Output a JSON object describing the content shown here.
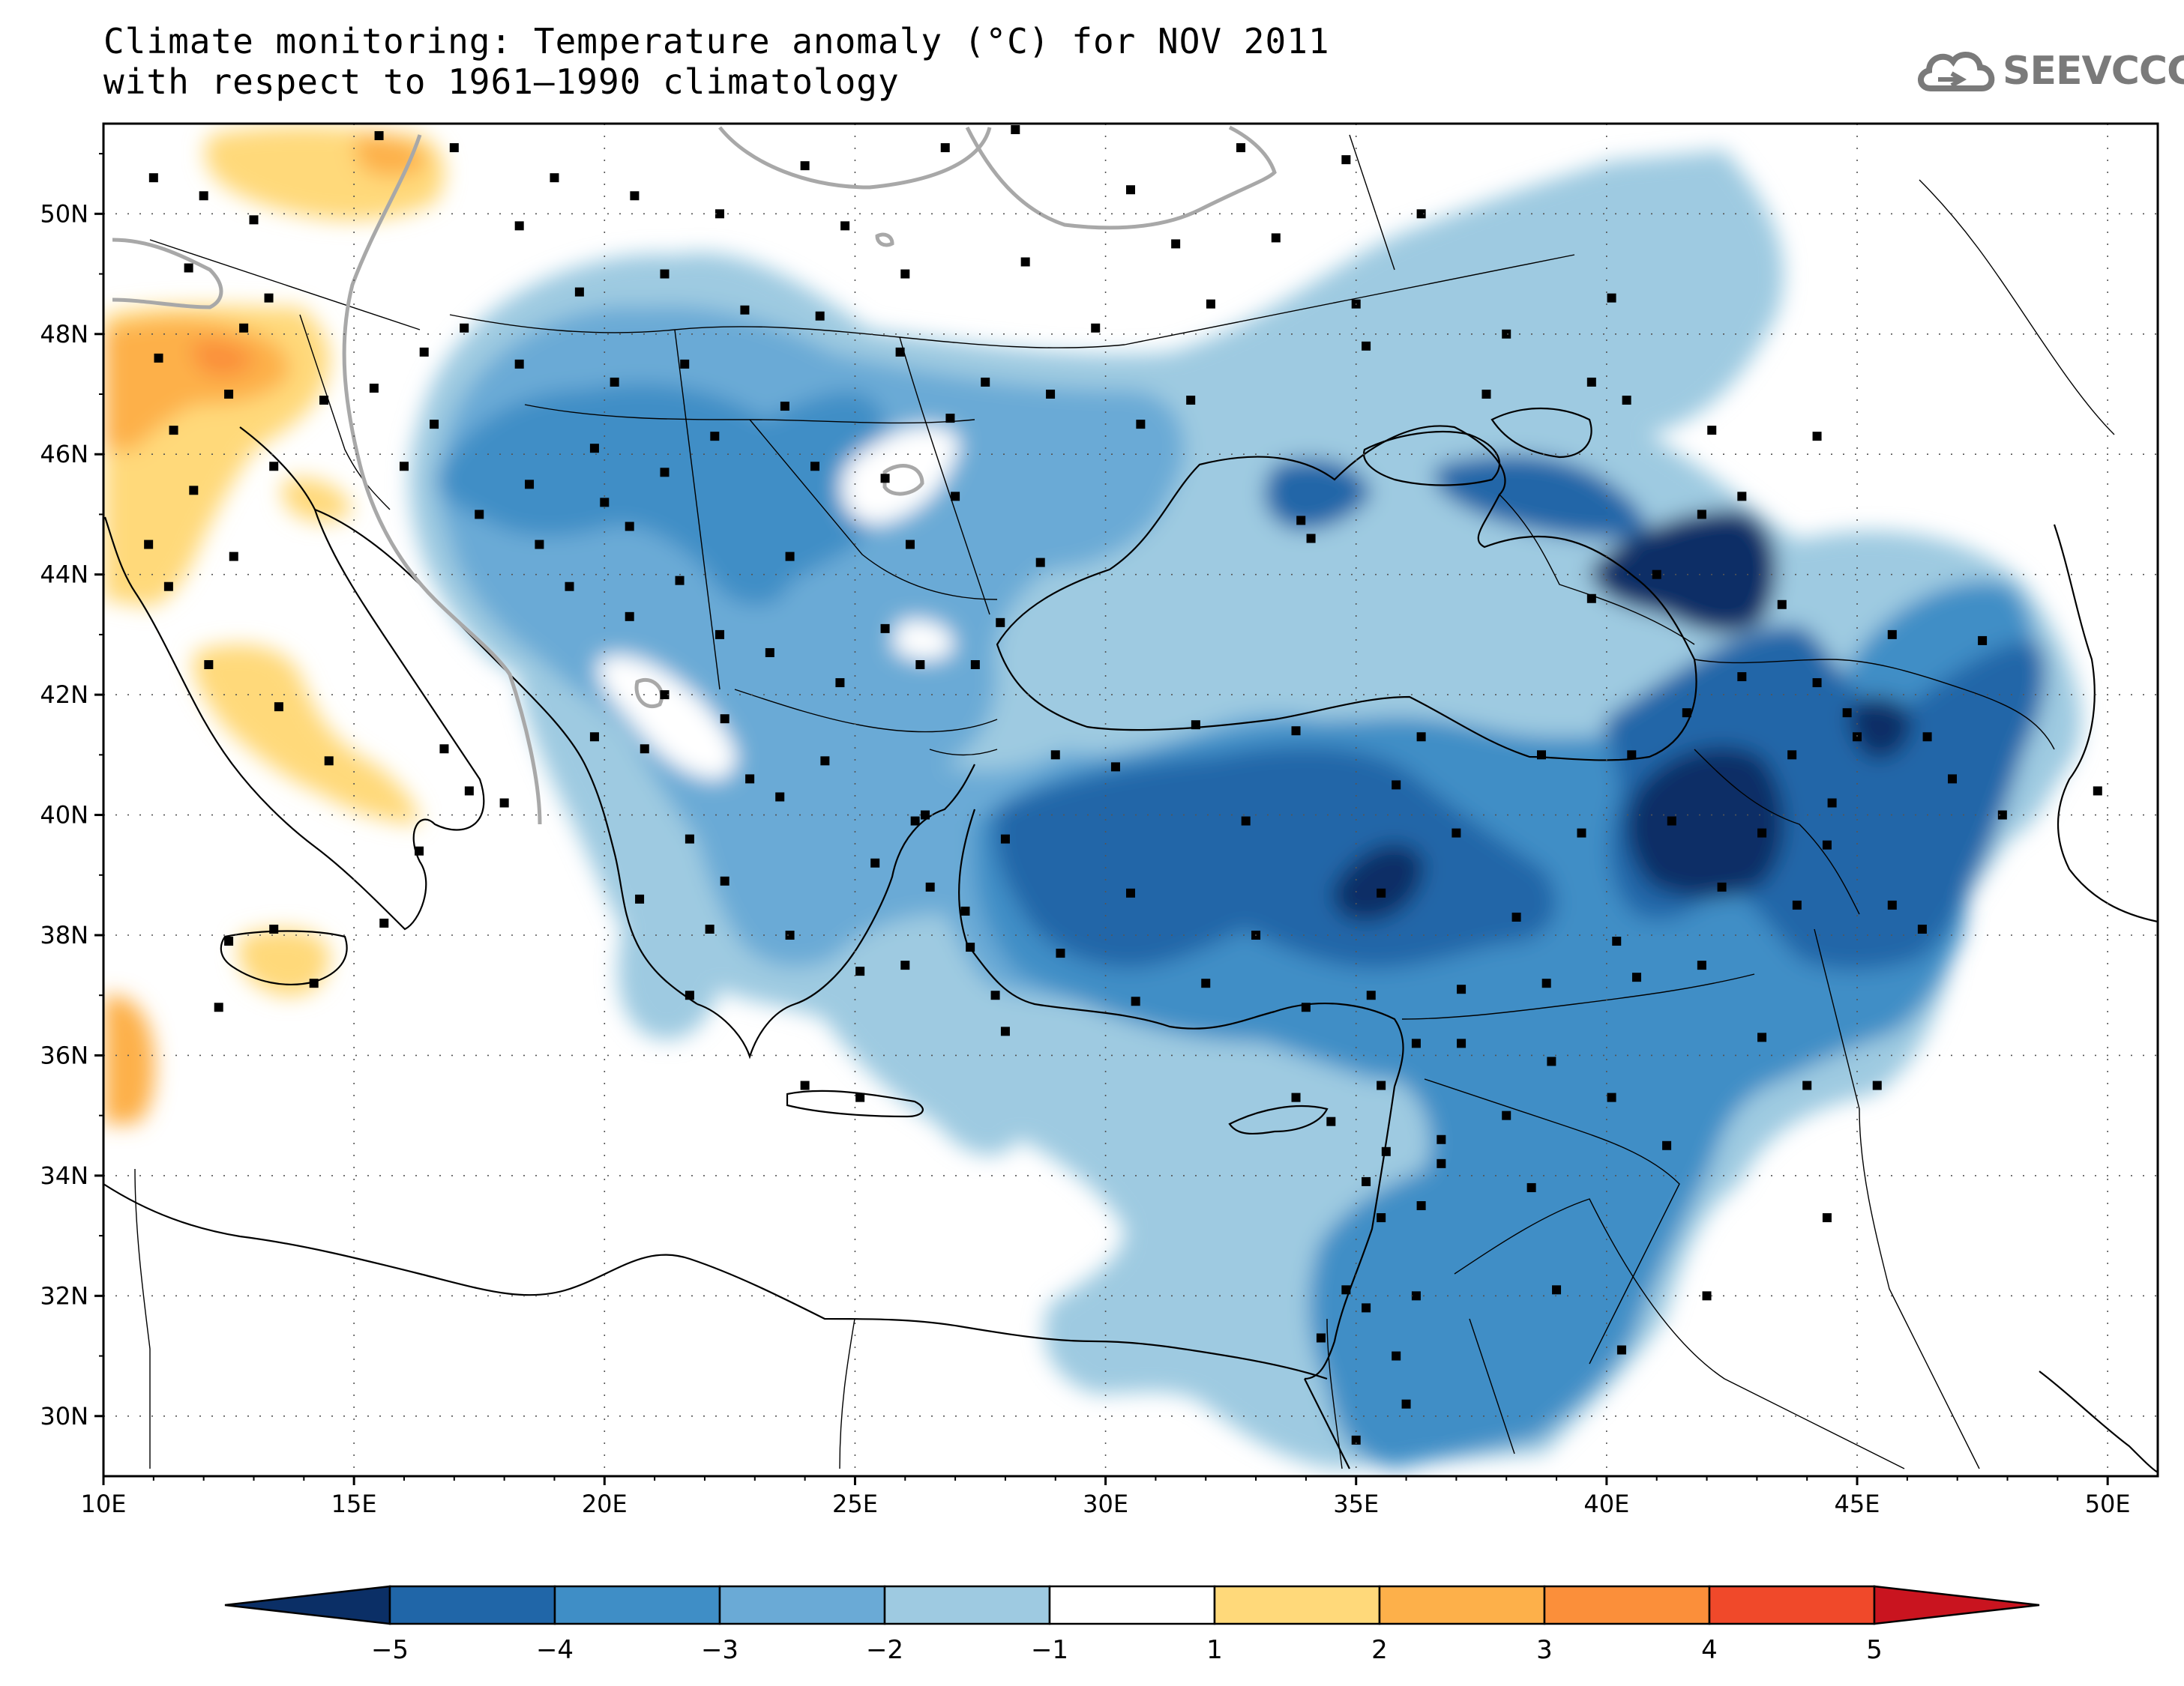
{
  "title": {
    "line1": "Climate monitoring: Temperature anomaly (°C) for NOV 2011",
    "line2": "with respect to 1961–1990 climatology"
  },
  "logo": {
    "text": "SEEVCCC",
    "icon": "cloud-icon"
  },
  "axes": {
    "x_ticks": [
      "10E",
      "15E",
      "20E",
      "25E",
      "30E",
      "35E",
      "40E",
      "45E",
      "50E"
    ],
    "y_ticks": [
      "30N",
      "32N",
      "34N",
      "36N",
      "38N",
      "40N",
      "42N",
      "44N",
      "46N",
      "48N",
      "50N"
    ]
  },
  "colorbar": {
    "labels": [
      "−5",
      "−4",
      "−3",
      "−2",
      "−1",
      "1",
      "2",
      "3",
      "4",
      "5"
    ],
    "colors": [
      "#0b2f66",
      "#2066a8",
      "#3f8ec6",
      "#6aaad6",
      "#9ecae1",
      "#ffffff",
      "#ffd97a",
      "#fdb04a",
      "#fb8f3a",
      "#f0492a",
      "#c9141f"
    ]
  },
  "chart_data": {
    "type": "heatmap",
    "title": "Climate monitoring: Temperature anomaly (°C) for NOV 2011",
    "subtitle": "with respect to 1961–1990 climatology",
    "xlim": [
      10,
      51
    ],
    "ylim": [
      29,
      51.5
    ],
    "legend_placement": "bottom",
    "levels": [
      -5,
      -4,
      -3,
      -2,
      -1,
      1,
      2,
      3,
      4,
      5
    ],
    "regions": [
      {
        "anomaly_range": [
          -5,
          -4
        ],
        "centers": [
          [
            41.5,
            44
          ],
          [
            41.5,
            40
          ],
          [
            35.5,
            39
          ],
          [
            45,
            41
          ]
        ]
      },
      {
        "anomaly_range": [
          -4,
          -3
        ],
        "centers": [
          [
            35,
            40
          ],
          [
            42,
            42
          ],
          [
            44,
            42
          ],
          [
            35,
            35.5
          ]
        ]
      },
      {
        "anomaly_range": [
          -3,
          -2
        ],
        "centers": [
          [
            25,
            46.5
          ],
          [
            36,
            37
          ],
          [
            38,
            36
          ],
          [
            22,
            43
          ]
        ]
      },
      {
        "anomaly_range": [
          -2,
          -1
        ],
        "centers": [
          [
            35,
            48
          ],
          [
            18,
            48.5
          ],
          [
            21,
            40
          ],
          [
            34,
            30.5
          ]
        ]
      },
      {
        "anomaly_range": [
          -1,
          1
        ],
        "centers": [
          [
            26,
            46
          ],
          [
            21,
            42
          ],
          [
            14,
            41
          ],
          [
            28,
            51
          ]
        ]
      },
      {
        "anomaly_range": [
          1,
          2
        ],
        "centers": [
          [
            11,
            46
          ],
          [
            14,
            42
          ],
          [
            14,
            38
          ],
          [
            20,
            51
          ]
        ]
      },
      {
        "anomaly_range": [
          2,
          3
        ],
        "centers": [
          [
            12.5,
            47.8
          ],
          [
            10.5,
            35.8
          ]
        ]
      }
    ]
  }
}
